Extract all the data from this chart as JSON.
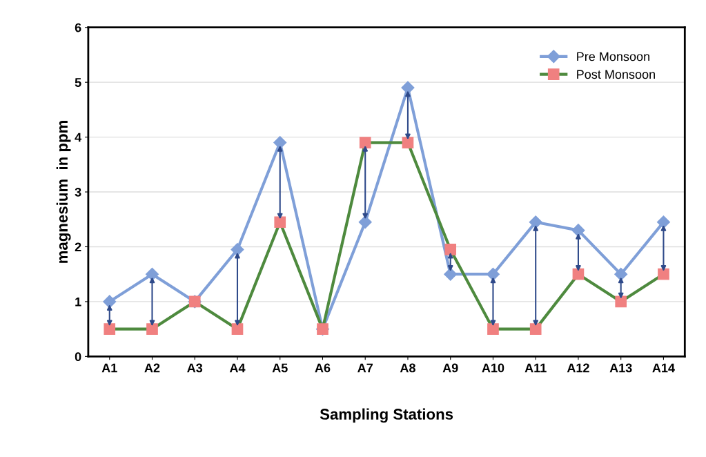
{
  "chart_data": {
    "type": "line",
    "xlabel": "Sampling Stations",
    "ylabel": "magnesium  in ppm",
    "categories": [
      "A1",
      "A2",
      "A3",
      "A4",
      "A5",
      "A6",
      "A7",
      "A8",
      "A9",
      "A10",
      "A11",
      "A12",
      "A13",
      "A14"
    ],
    "series": [
      {
        "name": "Pre Monsoon",
        "color": "#7f9fd8",
        "marker": "diamond",
        "values": [
          1.0,
          1.5,
          1.0,
          1.95,
          3.9,
          0.5,
          2.45,
          4.9,
          1.5,
          1.5,
          2.45,
          2.3,
          1.5,
          2.45
        ]
      },
      {
        "name": "Post Monsoon",
        "color": "#4e8a3e",
        "marker": "square",
        "colors": [
          "#f08080",
          "#f08080",
          "#f08080",
          "#f08080",
          "#f08080",
          "#f08080",
          "#f08080",
          "#f08080",
          "#f08080",
          "#f08080",
          "#f08080",
          "#f08080",
          "#f08080",
          "#f08080"
        ],
        "values": [
          0.5,
          0.5,
          1.0,
          0.5,
          2.45,
          0.5,
          3.9,
          3.9,
          1.95,
          0.5,
          0.5,
          1.5,
          1.0,
          1.5
        ]
      }
    ],
    "ylim": [
      0,
      6
    ],
    "yticks": [
      0,
      1,
      2,
      3,
      4,
      5,
      6
    ],
    "grid": "y",
    "legend": "top right"
  }
}
